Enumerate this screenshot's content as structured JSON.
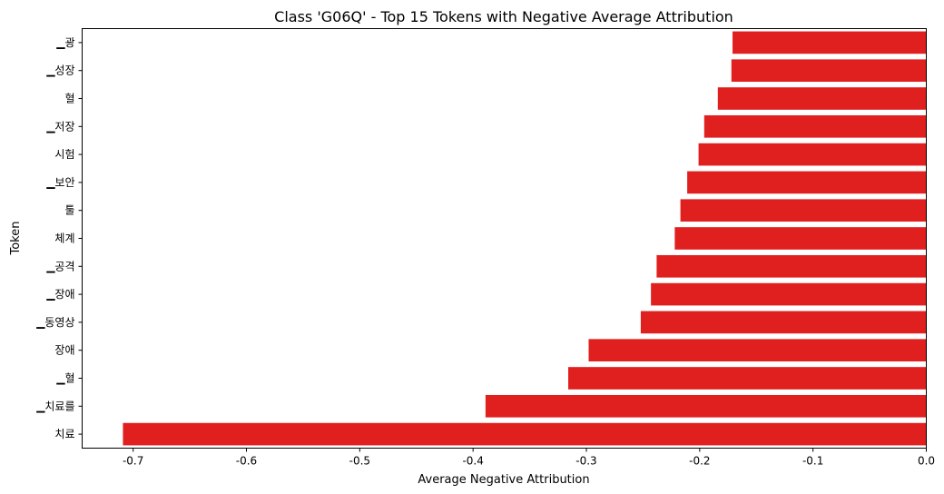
{
  "chart_data": {
    "type": "bar",
    "orientation": "horizontal",
    "title": "Class 'G06Q' - Top 15 Tokens with Negative Average Attribution",
    "xlabel": "Average Negative Attribution",
    "ylabel": "Token",
    "categories": [
      "▁광",
      "▁성장",
      "혈",
      "▁저장",
      "시험",
      "▁보안",
      "툴",
      "체계",
      "▁공격",
      "▁장애",
      "▁동영상",
      "장애",
      "▁혈",
      "▁치료를",
      "치료"
    ],
    "values": [
      -0.171,
      -0.172,
      -0.184,
      -0.196,
      -0.201,
      -0.211,
      -0.217,
      -0.222,
      -0.238,
      -0.243,
      -0.252,
      -0.298,
      -0.316,
      -0.389,
      -0.709
    ],
    "xlim": [
      -0.745,
      0.0
    ],
    "xticks": [
      -0.7,
      -0.6,
      -0.5,
      -0.4,
      -0.3,
      -0.2,
      -0.1,
      0.0
    ],
    "xtick_labels": [
      "-0.7",
      "-0.6",
      "-0.5",
      "-0.4",
      "-0.3",
      "-0.2",
      "-0.1",
      "0.0"
    ],
    "bar_color": "#e01f1f",
    "grid": false,
    "legend": "none"
  }
}
